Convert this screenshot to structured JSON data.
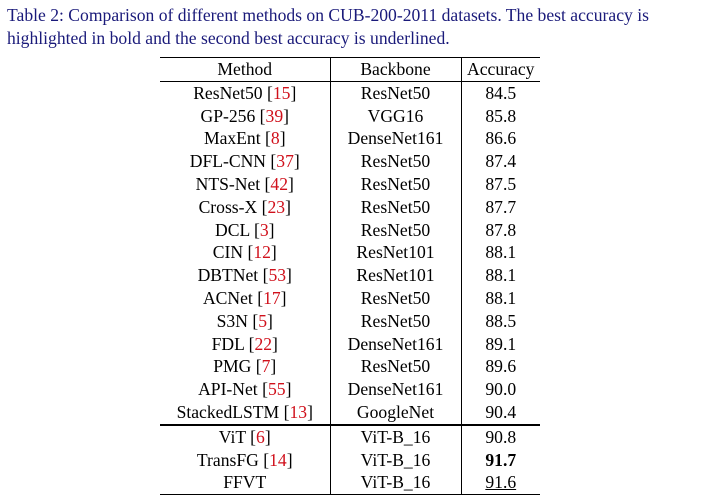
{
  "caption": {
    "line1": "Table 2: Comparison of different methods on CUB-200-2011 datasets. The best accuracy is",
    "line2": "highlighted in bold and the second best accuracy is underlined."
  },
  "table": {
    "headers": {
      "method": "Method",
      "backbone": "Backbone",
      "accuracy": "Accuracy"
    },
    "rows": [
      {
        "method": "ResNet50",
        "ref": "15",
        "backbone": "ResNet50",
        "accuracy": "84.5"
      },
      {
        "method": "GP-256",
        "ref": "39",
        "backbone": "VGG16",
        "accuracy": "85.8"
      },
      {
        "method": "MaxEnt",
        "ref": "8",
        "backbone": "DenseNet161",
        "accuracy": "86.6"
      },
      {
        "method": "DFL-CNN",
        "ref": "37",
        "backbone": "ResNet50",
        "accuracy": "87.4"
      },
      {
        "method": "NTS-Net",
        "ref": "42",
        "backbone": "ResNet50",
        "accuracy": "87.5"
      },
      {
        "method": "Cross-X",
        "ref": "23",
        "backbone": "ResNet50",
        "accuracy": "87.7"
      },
      {
        "method": "DCL",
        "ref": "3",
        "backbone": "ResNet50",
        "accuracy": "87.8"
      },
      {
        "method": "CIN",
        "ref": "12",
        "backbone": "ResNet101",
        "accuracy": "88.1"
      },
      {
        "method": "DBTNet",
        "ref": "53",
        "backbone": "ResNet101",
        "accuracy": "88.1"
      },
      {
        "method": "ACNet",
        "ref": "17",
        "backbone": "ResNet50",
        "accuracy": "88.1"
      },
      {
        "method": "S3N",
        "ref": "5",
        "backbone": "ResNet50",
        "accuracy": "88.5"
      },
      {
        "method": "FDL",
        "ref": "22",
        "backbone": "DenseNet161",
        "accuracy": "89.1"
      },
      {
        "method": "PMG",
        "ref": "7",
        "backbone": "ResNet50",
        "accuracy": "89.6"
      },
      {
        "method": "API-Net",
        "ref": "55",
        "backbone": "DenseNet161",
        "accuracy": "90.0"
      },
      {
        "method": "StackedLSTM",
        "ref": "13",
        "backbone": "GoogleNet",
        "accuracy": "90.4"
      },
      {
        "method": "ViT",
        "ref": "6",
        "backbone": "ViT-B_16",
        "accuracy": "90.8"
      },
      {
        "method": "TransFG",
        "ref": "14",
        "backbone": "ViT-B_16",
        "accuracy": "91.7"
      },
      {
        "method": "FFVT",
        "ref": "",
        "backbone": "ViT-B_16",
        "accuracy": "91.6"
      }
    ]
  },
  "colors": {
    "caption": "#1a1a7a",
    "citation": "#d0101b",
    "text": "#000000"
  }
}
